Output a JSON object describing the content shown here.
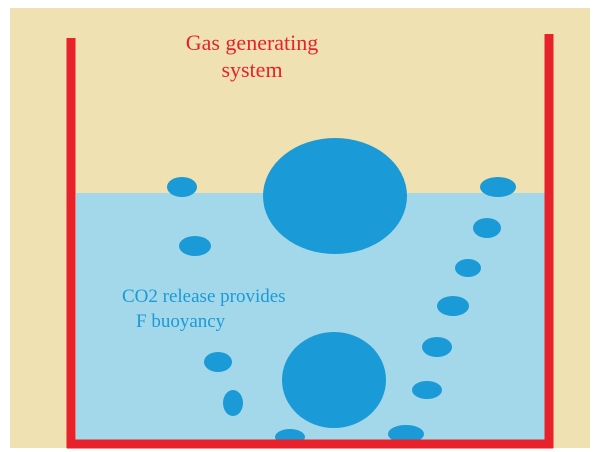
{
  "title": {
    "lines": [
      "Gas generating",
      "system"
    ]
  },
  "annotation": {
    "lines": [
      "CO2 release provides",
      "F buoyancy"
    ]
  }
}
